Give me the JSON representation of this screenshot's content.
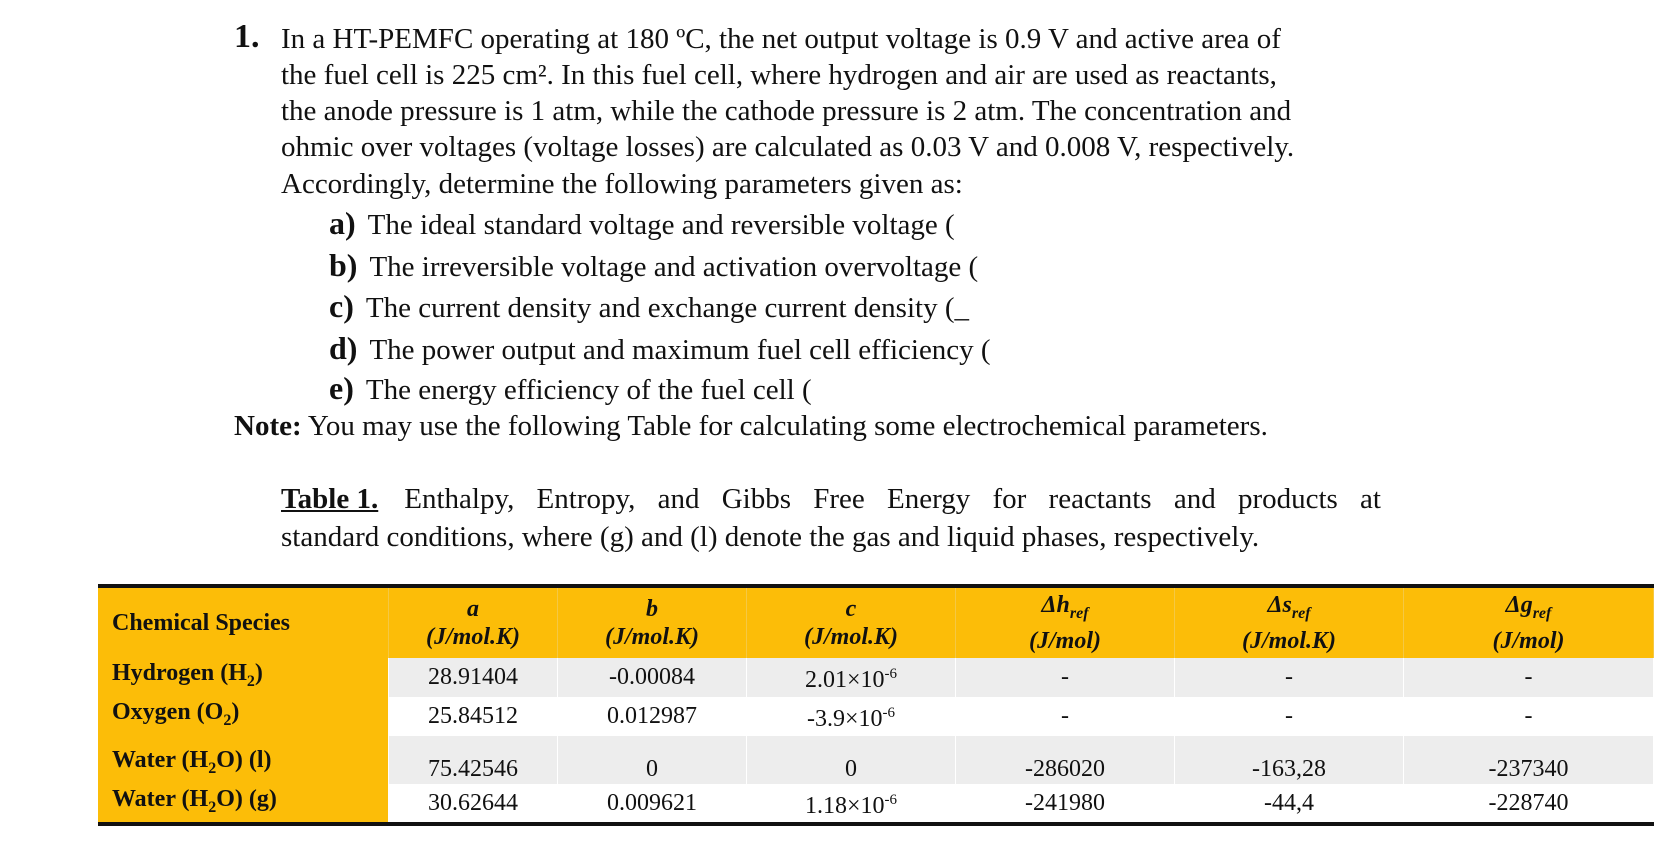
{
  "question": {
    "number": "1.",
    "lines": [
      "In a HT-PEMFC operating at 180 ºC, the net output voltage is 0.9 V and active area of",
      "the fuel cell is 225 cm². In this fuel cell, where hydrogen and air are used as reactants,",
      "the anode pressure is 1 atm, while the cathode pressure is 2 atm. The concentration and",
      "ohmic over voltages (voltage losses) are calculated as 0.03 V and 0.008 V, respectively.",
      "Accordingly, determine the following parameters given as:"
    ]
  },
  "subitems": [
    {
      "label": "a)",
      "text": "The ideal standard voltage and reversible voltage ("
    },
    {
      "label": "b)",
      "text": "The irreversible voltage and activation overvoltage ("
    },
    {
      "label": "c)",
      "text": "The current density and exchange current density (_"
    },
    {
      "label": "d)",
      "text": "The power output and maximum fuel cell efficiency ("
    },
    {
      "label": "e)",
      "text": "The energy efficiency of the fuel cell ("
    }
  ],
  "note": {
    "label": "Note:",
    "text": "You may use the following Table for calculating some electrochemical parameters."
  },
  "caption": {
    "label": "Table 1.",
    "line1": "Enthalpy, Entropy, and Gibbs Free Energy for reactants and products at",
    "line2": "standard conditions, where (g) and (l) denote the gas and liquid phases, respectively."
  },
  "table": {
    "headers": {
      "species": "Chemical Species",
      "a_sym": "a",
      "a_unit": "(J/mol.K)",
      "b_sym": "b",
      "b_unit": "(J/mol.K)",
      "c_sym": "c",
      "c_unit": "(J/mol.K)",
      "h_sym": "Δh",
      "h_sub": "ref",
      "h_unit": "(J/mol)",
      "s_sym": "Δs",
      "s_sub": "ref",
      "s_unit": "(J/mol.K)",
      "g_sym": "Δg",
      "g_sub": "ref",
      "g_unit": "(J/mol)"
    },
    "rows": [
      {
        "species_pre": "Hydrogen (H",
        "species_sub": "2",
        "species_post": ")",
        "a": "28.91404",
        "b": "-0.00084",
        "c_base": "2.01×10",
        "c_exp": "-6",
        "h": "-",
        "s": "-",
        "g": "-"
      },
      {
        "species_pre": "Oxygen (O",
        "species_sub": "2",
        "species_post": ")",
        "a": "25.84512",
        "b": "0.012987",
        "c_base": "-3.9×10",
        "c_exp": "-6",
        "h": "-",
        "s": "-",
        "g": "-"
      },
      {
        "species_pre": "Water (H",
        "species_sub": "2",
        "species_post": "O) (l)",
        "a": "75.42546",
        "b": "0",
        "c_base": "0",
        "c_exp": "",
        "h": "-286020",
        "s": "-163,28",
        "g": "-237340"
      },
      {
        "species_pre": "Water (H",
        "species_sub": "2",
        "species_post": "O) (g)",
        "a": "30.62644",
        "b": "0.009621",
        "c_base": "1.18×10",
        "c_exp": "-6",
        "h": "-241980",
        "s": "-44,4",
        "g": "-228740"
      }
    ]
  },
  "colors": {
    "header_bg": "#fcbd08",
    "row_shade": "#ededed"
  }
}
